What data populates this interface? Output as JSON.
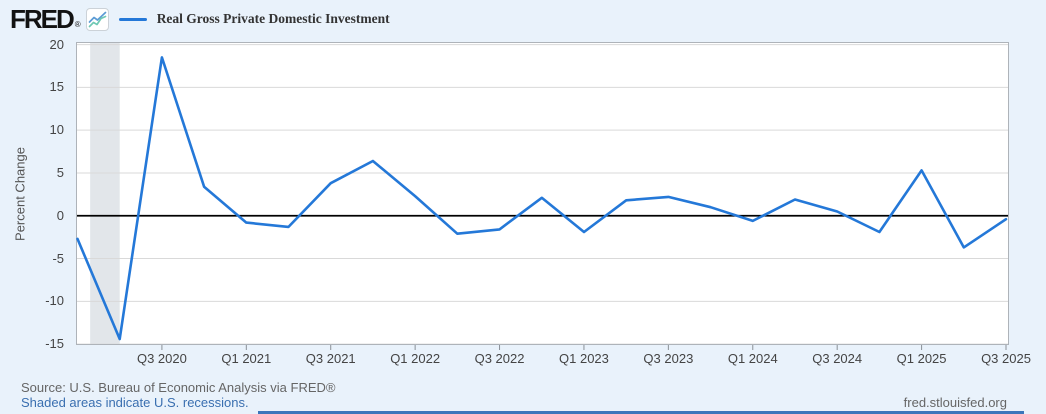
{
  "header": {
    "logo_text": "FRED",
    "registered_mark": "®",
    "legend": {
      "series_label": "Real Gross Private Domestic Investment"
    }
  },
  "chart_data": {
    "type": "line",
    "title": "Real Gross Private Domestic Investment",
    "ylabel": "Percent Change",
    "frequency": "Quarterly",
    "x": [
      "Q1 2020",
      "Q2 2020",
      "Q3 2020",
      "Q4 2020",
      "Q1 2021",
      "Q2 2021",
      "Q3 2021",
      "Q4 2021",
      "Q1 2022",
      "Q2 2022",
      "Q3 2022",
      "Q4 2022",
      "Q1 2023",
      "Q2 2023",
      "Q3 2023",
      "Q4 2023",
      "Q1 2024",
      "Q2 2024",
      "Q3 2024",
      "Q4 2024",
      "Q1 2025",
      "Q2 2025",
      "Q3 2025"
    ],
    "values": [
      -2.7,
      -14.4,
      18.5,
      3.4,
      -0.8,
      -1.3,
      3.8,
      6.4,
      2.3,
      -2.1,
      -1.6,
      2.1,
      -1.9,
      1.8,
      2.2,
      1.0,
      -0.6,
      1.9,
      0.5,
      -1.9,
      5.3,
      -3.7,
      -0.4
    ],
    "y_ticks": [
      20,
      15,
      10,
      5,
      0,
      -5,
      -10,
      -15
    ],
    "ylim": [
      -15.1,
      20.3
    ],
    "x_ticks": [
      {
        "index": 2,
        "label": "Q3 2020"
      },
      {
        "index": 4,
        "label": "Q1 2021"
      },
      {
        "index": 6,
        "label": "Q3 2021"
      },
      {
        "index": 8,
        "label": "Q1 2022"
      },
      {
        "index": 10,
        "label": "Q3 2022"
      },
      {
        "index": 12,
        "label": "Q1 2023"
      },
      {
        "index": 14,
        "label": "Q3 2023"
      },
      {
        "index": 16,
        "label": "Q1 2024"
      },
      {
        "index": 18,
        "label": "Q3 2024"
      },
      {
        "index": 20,
        "label": "Q1 2025"
      },
      {
        "index": 22,
        "label": "Q3 2025"
      }
    ],
    "recession_bands": [
      {
        "start_index": 0.3,
        "end_index": 1.0
      }
    ],
    "zero_line": true,
    "grid": "horizontal",
    "legend_position": "top-left"
  },
  "footer": {
    "source_line": "Source: U.S. Bureau of Economic Analysis via FRED®",
    "recession_note": "Shaded areas indicate U.S. recessions.",
    "site_link": "fred.stlouisfed.org"
  },
  "colors": {
    "page_background": "#e9f2fb",
    "plot_background": "#ffffff",
    "gridline": "#d9d9d9",
    "axis_border": "#aeb3b9",
    "recession_band": "#e2e6ea",
    "series_line": "#2478d8",
    "zero_line": "#000000",
    "axis_text": "#444444",
    "link_blue": "#3a6fb0",
    "source_text": "#666666",
    "bottom_bar": "#3a76bb"
  }
}
